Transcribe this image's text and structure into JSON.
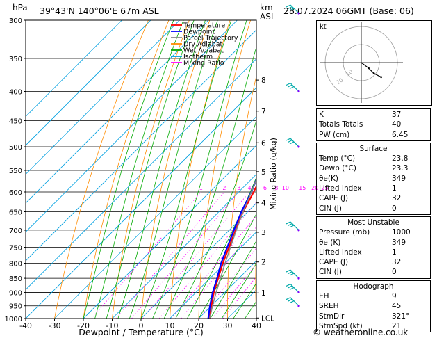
{
  "header": {
    "hpa_label": "hPa",
    "location": "39°43'N 140°06'E 67m ASL",
    "km_label": "km",
    "asl_label": "ASL",
    "datetime": "28.07.2024 06GMT (Base: 06)"
  },
  "footer": {
    "copyright": "© weatheronline.co.uk"
  },
  "chart_data": {
    "type": "line",
    "title": "",
    "xlabel": "Dewpoint / Temperature (°C)",
    "ylabel": "hPa",
    "x_ticks": [
      -40,
      -30,
      -20,
      -10,
      0,
      10,
      20,
      30,
      40
    ],
    "xlim": [
      -40,
      40
    ],
    "p_levels": [
      300,
      350,
      400,
      450,
      500,
      550,
      600,
      650,
      700,
      750,
      800,
      850,
      900,
      950,
      1000
    ],
    "ylim": [
      1000,
      300
    ],
    "y_scale": "log",
    "km_axis": {
      "label": "Mixing Ratio (g/kg)",
      "ticks": [
        {
          "km": "1",
          "p": 902
        },
        {
          "km": "2",
          "p": 796
        },
        {
          "km": "3",
          "p": 706
        },
        {
          "km": "4",
          "p": 627
        },
        {
          "km": "5",
          "p": 553
        },
        {
          "km": "6",
          "p": 492
        },
        {
          "km": "7",
          "p": 433
        },
        {
          "km": "8",
          "p": 382
        },
        {
          "km": "LCL",
          "p": 998
        }
      ]
    },
    "mixing_ratio_labels": [
      "1",
      "2",
      "3",
      "4",
      "6",
      "8",
      "10",
      "15",
      "20",
      "25"
    ],
    "mixing_ratio_values": [
      1,
      2,
      3,
      4,
      6,
      8,
      10,
      15,
      20,
      25
    ],
    "legend": [
      {
        "name": "Temperature",
        "color": "#ff0000"
      },
      {
        "name": "Dewpoint",
        "color": "#0000ff"
      },
      {
        "name": "Parcel Trajectory",
        "color": "#888888"
      },
      {
        "name": "Dry Adiabat",
        "color": "#ff8c00"
      },
      {
        "name": "Wet Adiabat",
        "color": "#00aa00"
      },
      {
        "name": "Isotherm",
        "color": "#00a0e0"
      },
      {
        "name": "Mixing Ratio",
        "color": "#ff00ff"
      }
    ],
    "series": [
      {
        "name": "Temperature",
        "color": "#ff0000",
        "points": [
          [
            1000,
            23.8
          ],
          [
            950,
            20.0
          ],
          [
            900,
            16.2
          ],
          [
            850,
            12.8
          ],
          [
            800,
            9.2
          ],
          [
            750,
            5.8
          ],
          [
            700,
            2.2
          ],
          [
            650,
            -1.6
          ],
          [
            600,
            -4.8
          ],
          [
            550,
            -8.6
          ],
          [
            500,
            -12.8
          ],
          [
            450,
            -18.0
          ],
          [
            400,
            -24.8
          ],
          [
            360,
            -30.5
          ]
        ]
      },
      {
        "name": "Dewpoint",
        "color": "#0000ff",
        "points": [
          [
            1000,
            23.3
          ],
          [
            950,
            19.5
          ],
          [
            900,
            15.8
          ],
          [
            850,
            12.4
          ],
          [
            800,
            8.6
          ],
          [
            750,
            5.2
          ],
          [
            700,
            1.6
          ],
          [
            650,
            -2.2
          ],
          [
            600,
            -5.6
          ],
          [
            550,
            -10.0
          ],
          [
            500,
            -16.5
          ],
          [
            450,
            -24.0
          ],
          [
            400,
            -32.0
          ],
          [
            360,
            -40.0
          ]
        ]
      },
      {
        "name": "Parcel Trajectory",
        "color": "#888888",
        "points": [
          [
            1000,
            23.8
          ],
          [
            950,
            20.4
          ],
          [
            900,
            17.0
          ],
          [
            850,
            13.6
          ],
          [
            800,
            10.0
          ],
          [
            750,
            6.3
          ],
          [
            700,
            2.4
          ],
          [
            650,
            -1.6
          ],
          [
            600,
            -5.6
          ],
          [
            550,
            -10.0
          ],
          [
            500,
            -15.2
          ],
          [
            450,
            -21.0
          ],
          [
            400,
            -28.0
          ],
          [
            360,
            -34.5
          ]
        ]
      }
    ],
    "wind_barbs_p": [
      300,
      400,
      500,
      700,
      850,
      900,
      950
    ],
    "hodograph": {
      "label": "kt",
      "ring_labels": [
        "10",
        "20"
      ],
      "points": [
        [
          0,
          0
        ],
        [
          4,
          -3
        ],
        [
          7,
          -6
        ],
        [
          11,
          -8
        ]
      ]
    }
  },
  "indices": [
    {
      "label": "K",
      "value": "37"
    },
    {
      "label": "Totals Totals",
      "value": "40"
    },
    {
      "label": "PW (cm)",
      "value": "6.45"
    }
  ],
  "surface": {
    "title": "Surface",
    "rows": [
      {
        "label": "Temp (°C)",
        "value": "23.8"
      },
      {
        "label": "Dewp (°C)",
        "value": "23.3"
      },
      {
        "label": "θe(K)",
        "value": "349"
      },
      {
        "label": "Lifted Index",
        "value": "1"
      },
      {
        "label": "CAPE (J)",
        "value": "32"
      },
      {
        "label": "CIN (J)",
        "value": "0"
      }
    ]
  },
  "most_unstable": {
    "title": "Most Unstable",
    "rows": [
      {
        "label": "Pressure (mb)",
        "value": "1000"
      },
      {
        "label": "θe (K)",
        "value": "349"
      },
      {
        "label": "Lifted Index",
        "value": "1"
      },
      {
        "label": "CAPE (J)",
        "value": "32"
      },
      {
        "label": "CIN (J)",
        "value": "0"
      }
    ]
  },
  "hodograph_table": {
    "title": "Hodograph",
    "rows": [
      {
        "label": "EH",
        "value": "9"
      },
      {
        "label": "SREH",
        "value": "45"
      },
      {
        "label": "StmDir",
        "value": "321°"
      },
      {
        "label": "StmSpd (kt)",
        "value": "21"
      }
    ]
  }
}
